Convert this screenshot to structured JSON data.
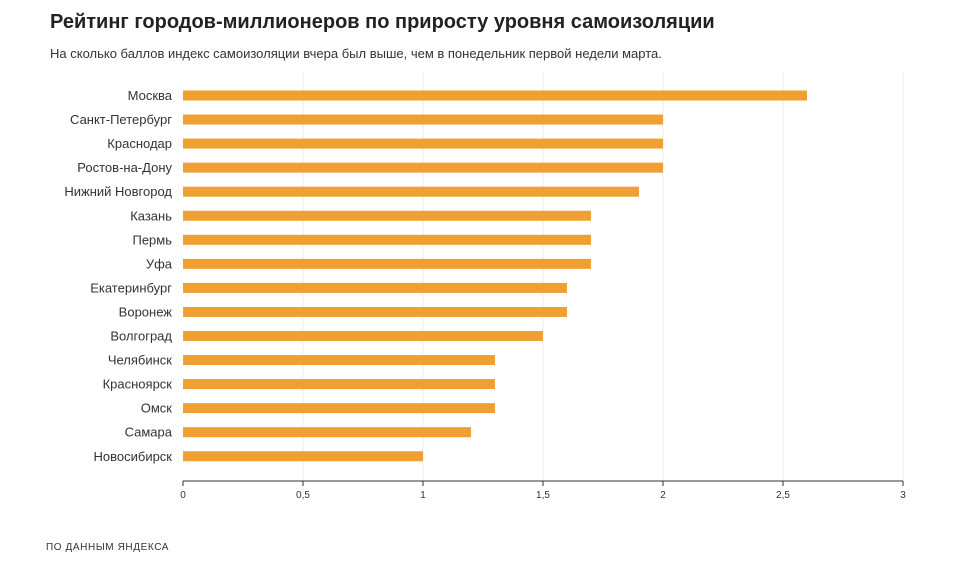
{
  "chart_data": {
    "type": "bar",
    "orientation": "horizontal",
    "title": "Рейтинг городов-миллионеров по приросту уровня самоизоляции",
    "subtitle": "На сколько баллов индекс самоизоляции вчера был выше, чем в понедельник первой недели марта.",
    "source": "ПО ДАННЫМ ЯНДЕКСА",
    "categories": [
      "Москва",
      "Санкт-Петербург",
      "Краснодар",
      "Ростов-на-Дону",
      "Нижний Новгород",
      "Казань",
      "Пермь",
      "Уфа",
      "Екатеринбург",
      "Воронеж",
      "Волгоград",
      "Челябинск",
      "Красноярск",
      "Омск",
      "Самара",
      "Новосибирск"
    ],
    "values": [
      2.6,
      2.0,
      2.0,
      2.0,
      1.9,
      1.7,
      1.7,
      1.7,
      1.6,
      1.6,
      1.5,
      1.3,
      1.3,
      1.3,
      1.2,
      1.0
    ],
    "xlim": [
      0,
      3
    ],
    "ticks": [
      0,
      0.5,
      1,
      1.5,
      2,
      2.5,
      3
    ],
    "tick_labels": [
      "0",
      "0,5",
      "1",
      "1,5",
      "2",
      "2,5",
      "3"
    ],
    "grid": true,
    "bar_color": "#f0a030",
    "xlabel": "",
    "ylabel": ""
  }
}
